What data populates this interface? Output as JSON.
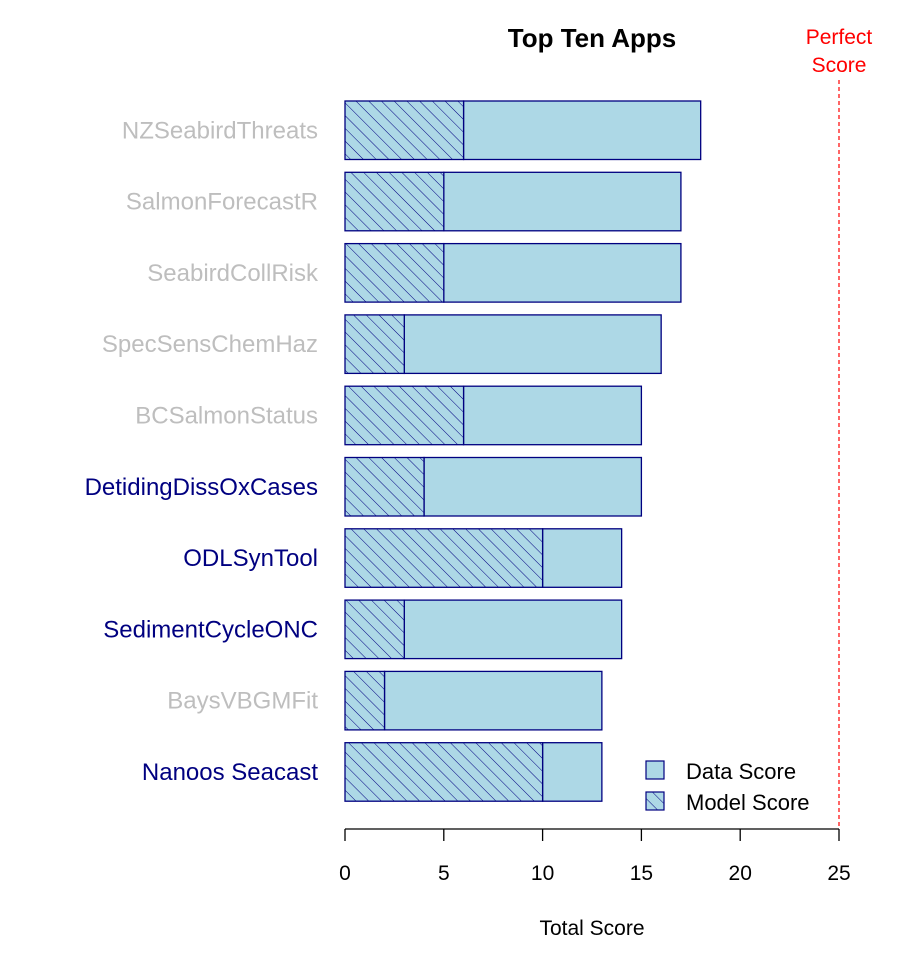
{
  "chart_data": {
    "type": "bar",
    "orientation": "horizontal",
    "stacked": true,
    "title": "Top Ten Apps",
    "xlabel": "Total Score",
    "ylabel": "",
    "xlim": [
      0,
      25
    ],
    "xticks": [
      0,
      5,
      10,
      15,
      20,
      25
    ],
    "categories": [
      "NZSeabirdThreats",
      "SalmonForecastR",
      "SeabirdCollRisk",
      "SpecSensChemHaz",
      "BCSalmonStatus",
      "DetidingDissOxCases",
      "ODLSynTool",
      "SedimentCycleONC",
      "BaysVBGMFit",
      "Nanoos Seacast"
    ],
    "category_colors": [
      "#bebebe",
      "#bebebe",
      "#bebebe",
      "#bebebe",
      "#bebebe",
      "#000080",
      "#000080",
      "#000080",
      "#bebebe",
      "#000080"
    ],
    "series": [
      {
        "name": "Model Score",
        "values": [
          6,
          5,
          5,
          3,
          6,
          4,
          10,
          3,
          2,
          10
        ],
        "fill": "#add8e6",
        "hatch": true
      },
      {
        "name": "Data Score",
        "values": [
          12,
          12,
          12,
          13,
          9,
          11,
          4,
          11,
          11,
          3
        ],
        "fill": "#add8e6",
        "hatch": false
      }
    ],
    "totals": [
      18,
      17,
      17,
      16,
      15,
      15,
      14,
      14,
      13,
      13
    ],
    "reference_line": {
      "value": 25,
      "label_line1": "Perfect",
      "label_line2": "Score",
      "color": "#ff0000",
      "style": "dashed"
    },
    "legend": {
      "position": "bottom-right",
      "entries": [
        "Data Score",
        "Model Score"
      ]
    },
    "bar_border_color": "#000080",
    "grid": false
  }
}
